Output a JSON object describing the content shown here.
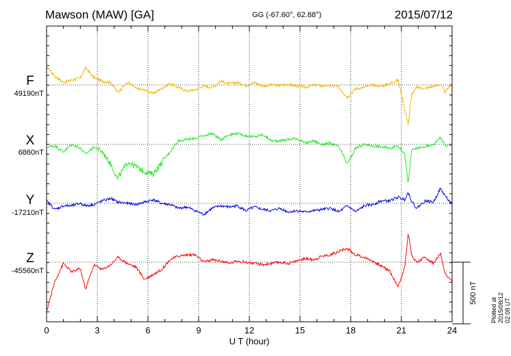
{
  "header": {
    "title": "Mawson (MAW)  [GA]",
    "coords": "GG (-67.60°,  62.88°)",
    "date": "2015/07/12"
  },
  "footer": {
    "plotted": "Plotted at 2015/08/12 02:08 UT"
  },
  "chart_data": {
    "type": "line",
    "title": "Mawson (MAW)  [GA]",
    "xlabel": "U T (hour)",
    "ylabel": "",
    "xlim": [
      0,
      24
    ],
    "x_ticks": [
      "0",
      "3",
      "6",
      "9",
      "12",
      "15",
      "18",
      "21",
      "24"
    ],
    "scale_bar": {
      "label": "500 nT",
      "value_nT": 500
    },
    "grid": true,
    "series": [
      {
        "name": "F",
        "baseline_label": "49190nT",
        "baseline_nT": 49190,
        "color": "#f5b400",
        "x": [
          0,
          0.5,
          1,
          1.5,
          2,
          2.3,
          2.8,
          3.3,
          3.8,
          4.2,
          4.8,
          5.3,
          5.8,
          6.3,
          6.8,
          7.3,
          7.8,
          8.3,
          8.8,
          9.3,
          9.8,
          10.3,
          10.8,
          11.3,
          11.8,
          12.3,
          12.8,
          13.3,
          13.8,
          14.3,
          14.8,
          15.3,
          15.8,
          16.3,
          16.8,
          17.3,
          17.8,
          18.3,
          18.8,
          19.3,
          19.8,
          20.3,
          20.8,
          21.2,
          21.4,
          21.6,
          21.9,
          22.4,
          22.9,
          23.3,
          23.6,
          24
        ],
        "values": [
          150,
          70,
          20,
          40,
          55,
          140,
          60,
          30,
          20,
          -60,
          20,
          -30,
          -40,
          -70,
          -30,
          10,
          -20,
          -50,
          -40,
          -10,
          -20,
          30,
          10,
          20,
          -5,
          20,
          -10,
          0,
          -5,
          5,
          -10,
          -20,
          0,
          -10,
          -5,
          -20,
          -100,
          -30,
          -20,
          0,
          -10,
          10,
          40,
          -200,
          -320,
          -80,
          -20,
          -30,
          -10,
          5,
          -60,
          20
        ]
      },
      {
        "name": "X",
        "baseline_label": "6860nT",
        "baseline_nT": 6860,
        "color": "#22e622",
        "x": [
          0,
          0.5,
          1,
          1.5,
          2,
          2.3,
          2.8,
          3.3,
          3.8,
          4.2,
          4.8,
          5.3,
          5.8,
          6.3,
          6.8,
          7.3,
          7.8,
          8.3,
          8.8,
          9.3,
          9.8,
          10.3,
          10.8,
          11.3,
          11.8,
          12.3,
          12.8,
          13.3,
          13.8,
          14.3,
          14.8,
          15.3,
          15.8,
          16.3,
          16.8,
          17.3,
          17.8,
          18.3,
          18.8,
          19.3,
          19.8,
          20.3,
          20.8,
          21.2,
          21.4,
          21.6,
          21.9,
          22.4,
          22.9,
          23.3,
          23.6,
          24
        ],
        "values": [
          -20,
          -10,
          -60,
          0,
          -30,
          -80,
          -20,
          -60,
          -160,
          -280,
          -140,
          -180,
          -220,
          -240,
          -150,
          -60,
          30,
          40,
          50,
          70,
          90,
          40,
          80,
          90,
          70,
          60,
          80,
          30,
          30,
          40,
          50,
          10,
          30,
          0,
          10,
          -20,
          -160,
          -30,
          0,
          -10,
          -20,
          -30,
          -10,
          -80,
          -320,
          -50,
          -30,
          -20,
          0,
          60,
          -10,
          -10
        ]
      },
      {
        "name": "Y",
        "baseline_label": "-17210nT",
        "baseline_nT": -17210,
        "color": "#0000e6",
        "x": [
          0,
          0.5,
          1,
          1.5,
          2,
          2.3,
          2.8,
          3.3,
          3.8,
          4.2,
          4.8,
          5.3,
          5.8,
          6.3,
          6.8,
          7.3,
          7.8,
          8.3,
          8.8,
          9.3,
          9.8,
          10.3,
          10.8,
          11.3,
          11.8,
          12.3,
          12.8,
          13.3,
          13.8,
          14.3,
          14.8,
          15.3,
          15.8,
          16.3,
          16.8,
          17.3,
          17.8,
          18.3,
          18.8,
          19.3,
          19.8,
          20.3,
          20.8,
          21.2,
          21.4,
          21.6,
          21.9,
          22.4,
          22.9,
          23.3,
          23.6,
          24
        ],
        "values": [
          20,
          -50,
          -20,
          -20,
          0,
          -20,
          -10,
          20,
          40,
          10,
          0,
          -10,
          10,
          30,
          0,
          -10,
          -40,
          -30,
          -60,
          -90,
          -40,
          -20,
          -30,
          -20,
          -60,
          -30,
          -50,
          -60,
          -40,
          -70,
          -60,
          -70,
          -60,
          -50,
          -40,
          -70,
          -20,
          -70,
          -20,
          -10,
          20,
          20,
          50,
          30,
          90,
          20,
          -40,
          20,
          10,
          120,
          60,
          -10
        ]
      },
      {
        "name": "Z",
        "baseline_label": "-45560nT",
        "baseline_nT": -45560,
        "color": "#ff0000",
        "x": [
          0,
          0.5,
          1,
          1.5,
          2,
          2.3,
          2.8,
          3.3,
          3.8,
          4.2,
          4.8,
          5.3,
          5.8,
          6.3,
          6.8,
          7.3,
          7.8,
          8.3,
          8.8,
          9.3,
          9.8,
          10.3,
          10.8,
          11.3,
          11.8,
          12.3,
          12.8,
          13.3,
          13.8,
          14.3,
          14.8,
          15.3,
          15.8,
          16.3,
          16.8,
          17.3,
          17.8,
          18.3,
          18.8,
          19.3,
          19.8,
          20.3,
          20.8,
          21.2,
          21.4,
          21.6,
          21.9,
          22.4,
          22.9,
          23.3,
          23.6,
          24
        ],
        "values": [
          -400,
          -150,
          -10,
          -80,
          -50,
          -220,
          -20,
          -60,
          -20,
          40,
          -10,
          -40,
          -140,
          -100,
          -60,
          20,
          50,
          60,
          60,
          0,
          20,
          10,
          -10,
          10,
          0,
          -10,
          -20,
          -10,
          0,
          -10,
          10,
          30,
          20,
          50,
          60,
          90,
          110,
          60,
          40,
          10,
          -30,
          -70,
          -200,
          -40,
          240,
          60,
          0,
          40,
          -10,
          70,
          -100,
          -160
        ]
      }
    ]
  }
}
